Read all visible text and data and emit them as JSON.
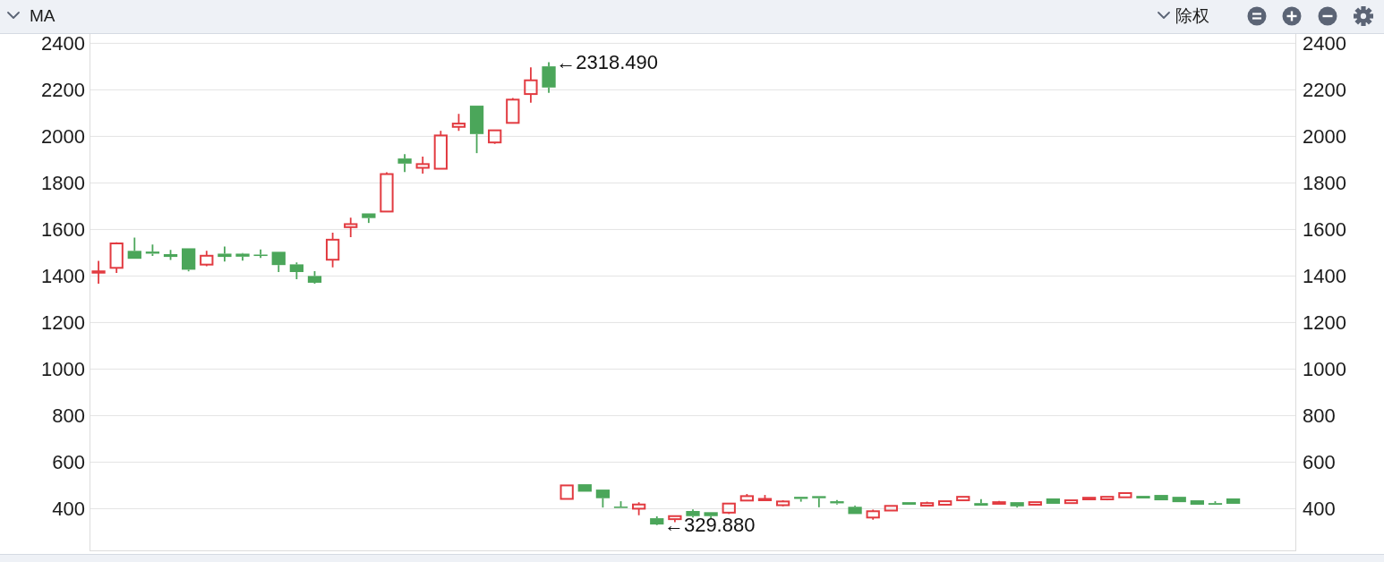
{
  "chart_data": {
    "type": "candlestick",
    "title": "MA",
    "categories": [
      null,
      null,
      null,
      null,
      null,
      null,
      null,
      null,
      null,
      null,
      null,
      null,
      null,
      null,
      null,
      null,
      null,
      null,
      null,
      null,
      null,
      null,
      null,
      null,
      null,
      null,
      null,
      null,
      null,
      null,
      null,
      null,
      null,
      null,
      null,
      null,
      null,
      null,
      null,
      null,
      null,
      null,
      null,
      null,
      null,
      null,
      null,
      null,
      null,
      null,
      null,
      null,
      null,
      null,
      null,
      null,
      null,
      null,
      null,
      null,
      null,
      null,
      null,
      null,
      null,
      null,
      null
    ],
    "ohlc": [
      [
        1415,
        1465,
        1367,
        1420
      ],
      [
        1435,
        1545,
        1413,
        1540
      ],
      [
        1508,
        1565,
        1474,
        1474
      ],
      [
        1505,
        1535,
        1486,
        1496
      ],
      [
        1494,
        1512,
        1469,
        1482
      ],
      [
        1519,
        1519,
        1420,
        1427
      ],
      [
        1449,
        1508,
        1442,
        1487
      ],
      [
        1496,
        1527,
        1462,
        1482
      ],
      [
        1496,
        1499,
        1466,
        1483
      ],
      [
        1492,
        1514,
        1478,
        1486
      ],
      [
        1504,
        1504,
        1417,
        1447
      ],
      [
        1450,
        1458,
        1386,
        1417
      ],
      [
        1400,
        1421,
        1367,
        1371
      ],
      [
        1470,
        1586,
        1437,
        1556
      ],
      [
        1610,
        1651,
        1567,
        1623
      ],
      [
        1669,
        1669,
        1628,
        1649
      ],
      [
        1677,
        1846,
        1677,
        1838
      ],
      [
        1905,
        1924,
        1847,
        1883
      ],
      [
        1865,
        1913,
        1840,
        1881
      ],
      [
        1861,
        2024,
        1861,
        2004
      ],
      [
        2041,
        2097,
        2024,
        2055
      ],
      [
        2132,
        2132,
        1928,
        2010
      ],
      [
        1974,
        2026,
        1968,
        2026
      ],
      [
        2058,
        2165,
        2058,
        2158
      ],
      [
        2182,
        2297,
        2145,
        2241
      ],
      [
        2301,
        2318.49,
        2187,
        2210
      ],
      [
        442,
        500,
        442,
        500
      ],
      [
        505,
        505,
        473,
        473
      ],
      [
        482,
        482,
        405,
        445
      ],
      [
        409,
        432,
        403,
        403
      ],
      [
        400,
        428,
        372,
        418
      ],
      [
        359,
        367,
        329.88,
        332
      ],
      [
        355,
        368,
        342,
        368
      ],
      [
        390,
        397,
        362,
        368
      ],
      [
        385,
        385,
        358,
        368
      ],
      [
        383,
        422,
        377,
        422
      ],
      [
        435,
        463,
        435,
        454
      ],
      [
        437,
        459,
        437,
        442
      ],
      [
        415,
        436,
        410,
        431
      ],
      [
        451,
        451,
        430,
        442
      ],
      [
        454,
        454,
        406,
        445
      ],
      [
        432,
        437,
        418,
        423
      ],
      [
        408,
        413,
        377,
        377
      ],
      [
        362,
        396,
        353,
        389
      ],
      [
        392,
        412,
        392,
        412
      ],
      [
        428,
        428,
        417,
        417
      ],
      [
        413,
        430,
        413,
        424
      ],
      [
        417,
        432,
        417,
        432
      ],
      [
        436,
        451,
        436,
        451
      ],
      [
        424,
        441,
        413,
        413
      ],
      [
        421,
        433,
        421,
        428
      ],
      [
        428,
        428,
        405,
        410
      ],
      [
        417,
        428,
        413,
        428
      ],
      [
        444,
        444,
        421,
        421
      ],
      [
        424,
        436,
        424,
        436
      ],
      [
        440,
        447,
        440,
        447
      ],
      [
        440,
        451,
        436,
        451
      ],
      [
        449,
        467,
        449,
        467
      ],
      [
        455,
        455,
        444,
        444
      ],
      [
        459,
        459,
        436,
        436
      ],
      [
        451,
        451,
        428,
        428
      ],
      [
        436,
        436,
        417,
        417
      ],
      [
        424,
        432,
        417,
        417
      ],
      [
        444,
        444,
        421,
        421
      ],
      null,
      null,
      null
    ],
    "colors": [
      "#e23b41",
      "#e23b41",
      "#4ba65a",
      "#4ba65a",
      "#4ba65a",
      "#4ba65a",
      "#e23b41",
      "#4ba65a",
      "#4ba65a",
      "#4ba65a",
      "#4ba65a",
      "#4ba65a",
      "#4ba65a",
      "#e23b41",
      "#e23b41",
      "#4ba65a",
      "#e23b41",
      "#4ba65a",
      "#e23b41",
      "#e23b41",
      "#e23b41",
      "#4ba65a",
      "#e23b41",
      "#e23b41",
      "#e23b41",
      "#4ba65a",
      "#e23b41",
      "#4ba65a",
      "#4ba65a",
      "#4ba65a",
      "#e23b41",
      "#4ba65a",
      "#e23b41",
      "#4ba65a",
      "#4ba65a",
      "#e23b41",
      "#e23b41",
      "#e23b41",
      "#e23b41",
      "#4ba65a",
      "#4ba65a",
      "#4ba65a",
      "#4ba65a",
      "#e23b41",
      "#e23b41",
      "#4ba65a",
      "#e23b41",
      "#e23b41",
      "#e23b41",
      "#4ba65a",
      "#e23b41",
      "#4ba65a",
      "#e23b41",
      "#4ba65a",
      "#e23b41",
      "#e23b41",
      "#e23b41",
      "#e23b41",
      "#4ba65a",
      "#4ba65a",
      "#4ba65a",
      "#4ba65a",
      "#4ba65a",
      "#4ba65a",
      null,
      null,
      null
    ],
    "ylim": [
      217,
      2440
    ],
    "yticks": [
      400,
      600,
      800,
      1000,
      1200,
      1400,
      1600,
      1800,
      2000,
      2200,
      2400
    ],
    "y2lim": [
      217,
      2440
    ],
    "y2ticks": [
      400,
      600,
      800,
      1000,
      1200,
      1400,
      1600,
      1800,
      2000,
      2200,
      2400
    ],
    "grid": "y",
    "annotations": [
      "除权",
      "←2318.490",
      "←329.880"
    ]
  }
}
